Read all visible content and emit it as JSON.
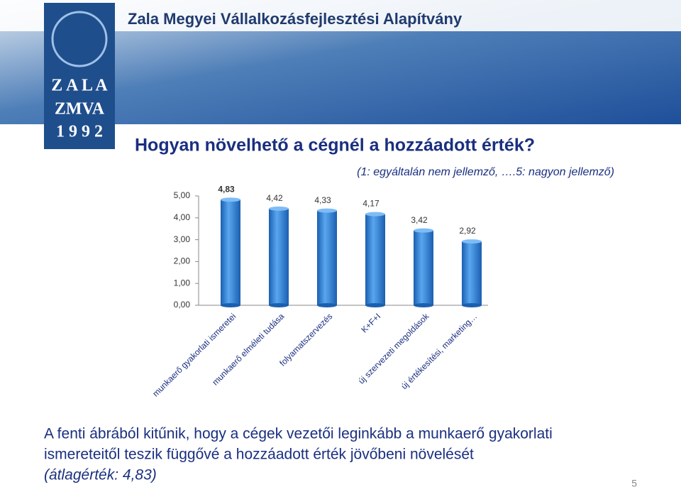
{
  "header": {
    "organization": "Zala Megyei Vállalkozásfejlesztési Alapítvány",
    "logo": [
      "Z A L A",
      "ZMVA",
      "1 9 9 2"
    ]
  },
  "chart_data": {
    "type": "bar",
    "title": "Hogyan növelhető a cégnél a hozzáadott érték?",
    "subtitle": "(1: egyáltalán nem jellemző, ….5: nagyon jellemző)",
    "categories": [
      "munkaerő gyakorlati ismeretei",
      "munkaerő elméleti tudása",
      "folyamatszervezés",
      "K+F+I",
      "új szervezeti megoldások",
      "új értékesítési, marketing…"
    ],
    "values": [
      4.83,
      4.42,
      4.33,
      4.17,
      3.42,
      2.92
    ],
    "value_labels": [
      "4,83",
      "4,42",
      "4,33",
      "4,17",
      "3,42",
      "2,92"
    ],
    "color": "#2f7fd6",
    "ylim": [
      0,
      5
    ],
    "yticks": [
      {
        "value": 0,
        "label": "0,00"
      },
      {
        "value": 1,
        "label": "1,00"
      },
      {
        "value": 2,
        "label": "2,00"
      },
      {
        "value": 3,
        "label": "3,00"
      },
      {
        "value": 4,
        "label": "4,00"
      },
      {
        "value": 5,
        "label": "5,00"
      }
    ],
    "grid": false
  },
  "body": {
    "lines": [
      "A fenti ábrából kitűnik, hogy a cégek vezetői leginkább a munkaerő gyakorlati",
      "ismereteitől teszik függővé a hozzáadott érték jövőbeni növelését",
      "(átlagérték: 4,83)"
    ]
  },
  "page_number": "5"
}
